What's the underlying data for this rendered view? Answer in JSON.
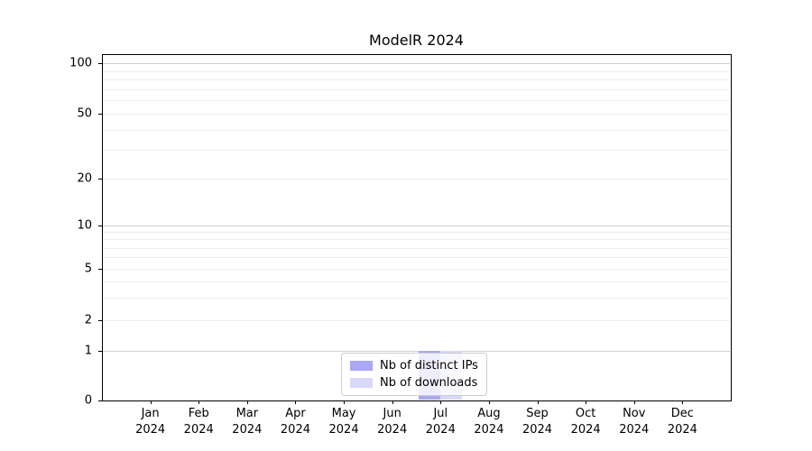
{
  "chart_data": {
    "type": "bar",
    "title": "ModelR 2024",
    "x_year": "2024",
    "months": [
      "Jan",
      "Feb",
      "Mar",
      "Apr",
      "May",
      "Jun",
      "Jul",
      "Aug",
      "Sep",
      "Oct",
      "Nov",
      "Dec"
    ],
    "series": [
      {
        "name": "Nb of distinct IPs",
        "color": "#a8a8f5",
        "values": [
          0,
          0,
          0,
          0,
          0,
          0,
          1,
          0,
          0,
          0,
          0,
          0
        ]
      },
      {
        "name": "Nb of downloads",
        "color": "#d8d8fa",
        "values": [
          0,
          0,
          0,
          0,
          0,
          0,
          1,
          0,
          0,
          0,
          0,
          0
        ]
      }
    ],
    "y_ticks": [
      0,
      1,
      2,
      5,
      10,
      20,
      50,
      100
    ],
    "y_major_grid_values": [
      1,
      10,
      100
    ],
    "y_minor_grid_values": [
      3,
      4,
      6,
      7,
      8,
      9,
      30,
      40,
      60,
      70,
      80,
      90
    ],
    "y_scale": "symlog",
    "ylim": [
      0,
      115
    ],
    "xlabel": "",
    "ylabel": "",
    "grid": "horizontal",
    "legend_position": "lower center",
    "colors": {
      "major_grid": "#d0d0d0",
      "minor_grid": "#ececec",
      "axis": "#000000",
      "background": "#ffffff"
    }
  }
}
